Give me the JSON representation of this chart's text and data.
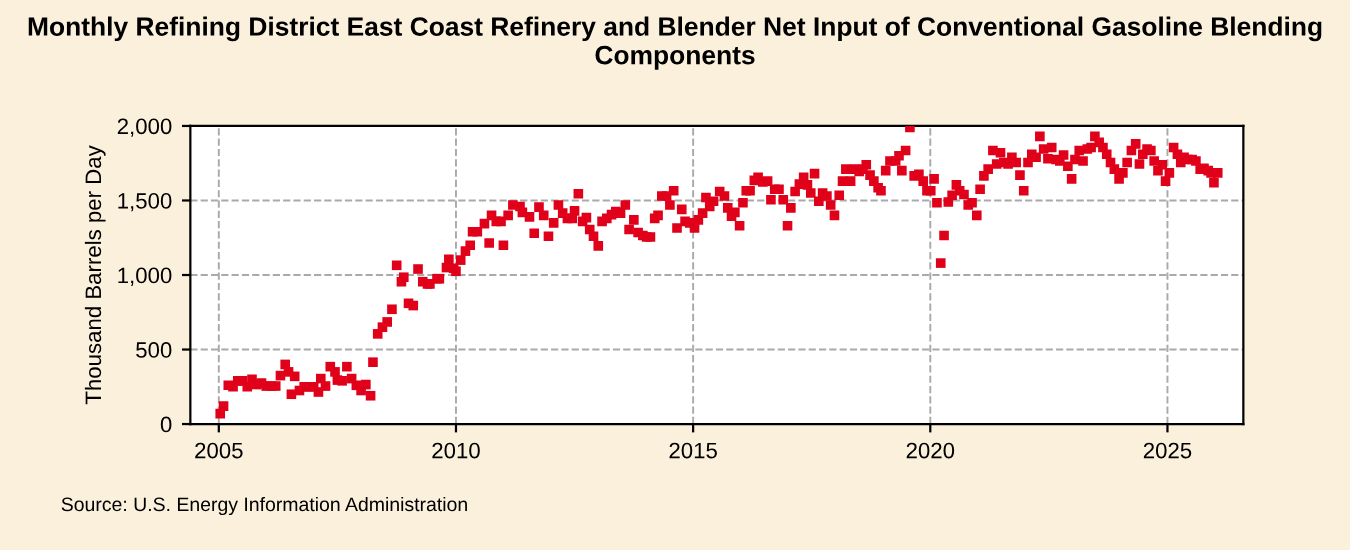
{
  "chart_data": {
    "type": "scatter",
    "title": "Monthly Refining District East Coast Refinery and Blender Net Input of Conventional Gasoline Blending Components",
    "ylabel": "Thousand Barrels per Day",
    "annotations": [
      "Source: U.S. Energy Information Administration"
    ],
    "marker": "square",
    "grid": true,
    "xlim": [
      2004.4,
      2026.6
    ],
    "xticks": [
      2005,
      2010,
      2015,
      2020,
      2025
    ],
    "ylim": [
      0,
      2000
    ],
    "yticks": [
      0,
      {
        "value": 500,
        "label": "500"
      },
      {
        "value": 1000,
        "label": "1,000"
      },
      {
        "value": 1500,
        "label": "1,500"
      },
      {
        "value": 2000,
        "label": "2,000"
      }
    ],
    "series": [
      {
        "color": "#e0001a",
        "x": [
          2005.03,
          2005.1,
          2005.2,
          2005.3,
          2005.4,
          2005.5,
          2005.6,
          2005.7,
          2005.8,
          2005.9,
          2006.0,
          2006.1,
          2006.2,
          2006.3,
          2006.4,
          2006.47,
          2006.53,
          2006.6,
          2006.7,
          2006.8,
          2006.9,
          2007.0,
          2007.1,
          2007.15,
          2007.25,
          2007.35,
          2007.45,
          2007.5,
          2007.6,
          2007.7,
          2007.8,
          2007.9,
          2008.0,
          2008.1,
          2008.2,
          2008.25,
          2008.35,
          2008.45,
          2008.55,
          2008.65,
          2008.75,
          2008.85,
          2008.9,
          2009.0,
          2009.1,
          2009.2,
          2009.3,
          2009.4,
          2009.45,
          2009.6,
          2009.65,
          2009.8,
          2009.85,
          2009.95,
          2010.0,
          2010.1,
          2010.2,
          2010.3,
          2010.35,
          2010.45,
          2010.6,
          2010.7,
          2010.75,
          2010.85,
          2010.95,
          2011.0,
          2011.1,
          2011.2,
          2011.35,
          2011.4,
          2011.55,
          2011.65,
          2011.75,
          2011.85,
          2011.95,
          2012.06,
          2012.16,
          2012.25,
          2012.35,
          2012.45,
          2012.5,
          2012.58,
          2012.67,
          2012.75,
          2012.82,
          2012.9,
          2013.0,
          2013.08,
          2013.18,
          2013.28,
          2013.37,
          2013.47,
          2013.57,
          2013.65,
          2013.75,
          2013.84,
          2013.94,
          2014.02,
          2014.1,
          2014.19,
          2014.26,
          2014.34,
          2014.44,
          2014.51,
          2014.59,
          2014.66,
          2014.76,
          2014.83,
          2014.93,
          2015.03,
          2015.11,
          2015.2,
          2015.27,
          2015.35,
          2015.43,
          2015.56,
          2015.66,
          2015.73,
          2015.81,
          2015.88,
          2015.98,
          2016.05,
          2016.12,
          2016.2,
          2016.29,
          2016.37,
          2016.47,
          2016.57,
          2016.64,
          2016.72,
          2016.81,
          2016.9,
          2016.99,
          2017.06,
          2017.15,
          2017.24,
          2017.33,
          2017.41,
          2017.48,
          2017.56,
          2017.65,
          2017.73,
          2017.82,
          2017.9,
          2017.98,
          2018.08,
          2018.15,
          2018.22,
          2018.32,
          2018.4,
          2018.5,
          2018.58,
          2018.65,
          2018.73,
          2018.81,
          2018.9,
          2018.96,
          2019.06,
          2019.15,
          2019.27,
          2019.34,
          2019.4,
          2019.48,
          2019.57,
          2019.66,
          2019.76,
          2019.85,
          2019.93,
          2020.01,
          2020.08,
          2020.14,
          2020.22,
          2020.29,
          2020.38,
          2020.46,
          2020.55,
          2020.62,
          2020.71,
          2020.8,
          2020.88,
          2020.98,
          2021.05,
          2021.13,
          2021.22,
          2021.32,
          2021.4,
          2021.48,
          2021.55,
          2021.64,
          2021.72,
          2021.81,
          2021.89,
          2021.97,
          2022.06,
          2022.14,
          2022.23,
          2022.31,
          2022.39,
          2022.48,
          2022.56,
          2022.65,
          2022.73,
          2022.81,
          2022.9,
          2022.98,
          2023.05,
          2023.14,
          2023.22,
          2023.31,
          2023.39,
          2023.47,
          2023.56,
          2023.64,
          2023.72,
          2023.8,
          2023.88,
          2023.98,
          2024.06,
          2024.15,
          2024.24,
          2024.33,
          2024.41,
          2024.48,
          2024.57,
          2024.65,
          2024.72,
          2024.8,
          2024.89,
          2024.96,
          2025.04,
          2025.13,
          2025.21,
          2025.28,
          2025.35,
          2025.43,
          2025.52,
          2025.6,
          2025.69,
          2025.77,
          2025.86,
          2025.92,
          2025.98,
          2026.06
        ],
        "values": [
          70,
          120,
          260,
          250,
          290,
          290,
          250,
          300,
          265,
          275,
          255,
          255,
          255,
          325,
          400,
          350,
          200,
          320,
          225,
          250,
          250,
          250,
          215,
          305,
          255,
          385,
          350,
          295,
          290,
          385,
          305,
          260,
          225,
          265,
          190,
          415,
          605,
          650,
          685,
          770,
          1065,
          955,
          985,
          810,
          795,
          1040,
          955,
          940,
          940,
          975,
          975,
          1050,
          1105,
          1045,
          1025,
          1100,
          1160,
          1200,
          1290,
          1290,
          1345,
          1215,
          1400,
          1360,
          1360,
          1200,
          1400,
          1470,
          1460,
          1420,
          1390,
          1280,
          1455,
          1400,
          1260,
          1350,
          1470,
          1415,
          1380,
          1380,
          1430,
          1545,
          1360,
          1385,
          1305,
          1260,
          1195,
          1360,
          1380,
          1405,
          1425,
          1415,
          1470,
          1305,
          1370,
          1285,
          1265,
          1255,
          1255,
          1380,
          1400,
          1530,
          1530,
          1470,
          1565,
          1315,
          1440,
          1360,
          1350,
          1315,
          1370,
          1415,
          1520,
          1460,
          1495,
          1560,
          1530,
          1450,
          1395,
          1420,
          1330,
          1485,
          1565,
          1565,
          1635,
          1655,
          1625,
          1630,
          1505,
          1575,
          1575,
          1505,
          1330,
          1450,
          1560,
          1610,
          1655,
          1605,
          1550,
          1680,
          1495,
          1550,
          1530,
          1470,
          1400,
          1535,
          1630,
          1710,
          1630,
          1710,
          1695,
          1710,
          1740,
          1670,
          1630,
          1585,
          1565,
          1700,
          1765,
          1765,
          1800,
          1700,
          1835,
          1990,
          1665,
          1675,
          1630,
          1565,
          1565,
          1645,
          1485,
          1080,
          1265,
          1490,
          1535,
          1605,
          1565,
          1540,
          1470,
          1485,
          1400,
          1575,
          1665,
          1710,
          1835,
          1745,
          1820,
          1755,
          1745,
          1790,
          1755,
          1670,
          1565,
          1755,
          1810,
          1790,
          1930,
          1845,
          1780,
          1855,
          1775,
          1765,
          1805,
          1730,
          1645,
          1775,
          1835,
          1765,
          1845,
          1855,
          1930,
          1890,
          1855,
          1810,
          1755,
          1710,
          1645,
          1685,
          1755,
          1835,
          1880,
          1745,
          1810,
          1845,
          1835,
          1765,
          1700,
          1740,
          1630,
          1685,
          1855,
          1810,
          1755,
          1790,
          1775,
          1775,
          1765,
          1710,
          1715,
          1700,
          1685,
          1620,
          1685
        ]
      }
    ]
  }
}
